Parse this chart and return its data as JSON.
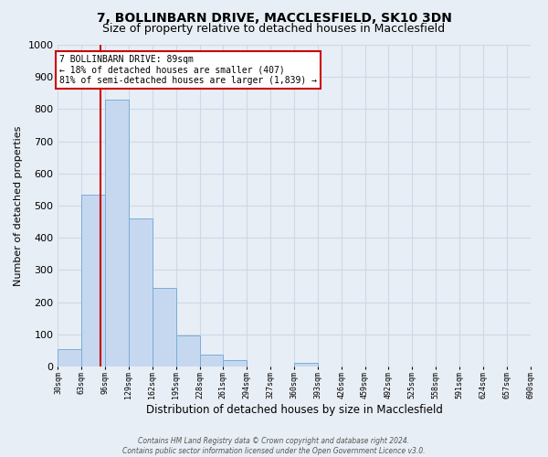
{
  "title": "7, BOLLINBARN DRIVE, MACCLESFIELD, SK10 3DN",
  "subtitle": "Size of property relative to detached houses in Macclesfield",
  "xlabel": "Distribution of detached houses by size in Macclesfield",
  "ylabel": "Number of detached properties",
  "bar_edges": [
    30,
    63,
    96,
    129,
    162,
    195,
    228,
    261,
    294,
    327,
    360,
    393,
    426,
    459,
    492,
    525,
    558,
    591,
    624,
    657,
    690
  ],
  "bar_heights": [
    55,
    535,
    830,
    460,
    245,
    97,
    38,
    20,
    0,
    0,
    10,
    0,
    0,
    0,
    0,
    0,
    0,
    0,
    0,
    0
  ],
  "bar_color": "#c5d8f0",
  "bar_edgecolor": "#7aaed6",
  "property_line_x": 89,
  "ylim": [
    0,
    1000
  ],
  "yticks": [
    0,
    100,
    200,
    300,
    400,
    500,
    600,
    700,
    800,
    900,
    1000
  ],
  "annotation_text_line1": "7 BOLLINBARN DRIVE: 89sqm",
  "annotation_text_line2": "← 18% of detached houses are smaller (407)",
  "annotation_text_line3": "81% of semi-detached houses are larger (1,839) →",
  "annotation_box_color": "#ffffff",
  "annotation_box_edgecolor": "#cc0000",
  "footer_line1": "Contains HM Land Registry data © Crown copyright and database right 2024.",
  "footer_line2": "Contains public sector information licensed under the Open Government Licence v3.0.",
  "title_fontsize": 10,
  "subtitle_fontsize": 9,
  "tick_labels": [
    "30sqm",
    "63sqm",
    "96sqm",
    "129sqm",
    "162sqm",
    "195sqm",
    "228sqm",
    "261sqm",
    "294sqm",
    "327sqm",
    "360sqm",
    "393sqm",
    "426sqm",
    "459sqm",
    "492sqm",
    "525sqm",
    "558sqm",
    "591sqm",
    "624sqm",
    "657sqm",
    "690sqm"
  ],
  "grid_color": "#ccd9e8",
  "background_color": "#e8eef5"
}
